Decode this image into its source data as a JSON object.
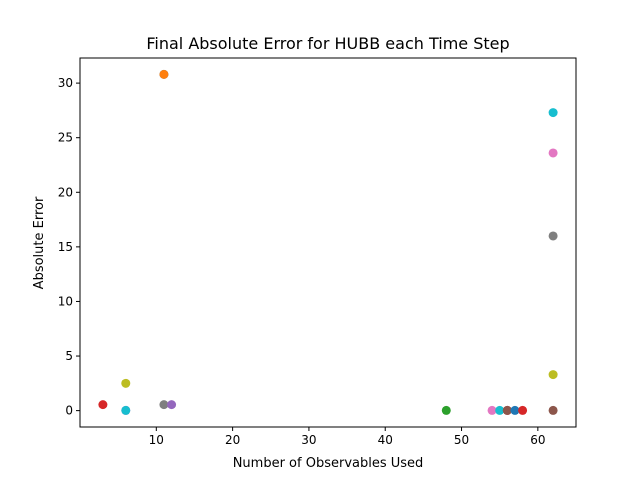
{
  "chart_data": {
    "type": "scatter",
    "title": "Final Absolute Error for HUBB each Time Step",
    "xlabel": "Number of Observables Used",
    "ylabel": "Absolute Error",
    "xlim": [
      0,
      65
    ],
    "ylim": [
      -1.5,
      32.3
    ],
    "xticks": [
      10,
      20,
      30,
      40,
      50,
      60
    ],
    "yticks": [
      0,
      5,
      10,
      15,
      20,
      25,
      30
    ],
    "grid": false,
    "legend": "none",
    "colors": [
      "#1f77b4",
      "#ff7f0e",
      "#2ca02c",
      "#d62728",
      "#9467bd",
      "#8c564b",
      "#e377c2",
      "#7f7f7f",
      "#bcbd22",
      "#17becf"
    ],
    "points": [
      {
        "x": 11,
        "y": 30.8,
        "color": "#1f77b4"
      },
      {
        "x": 11,
        "y": 30.8,
        "color": "#ff7f0e"
      },
      {
        "x": 3,
        "y": 0.55,
        "color": "#d62728"
      },
      {
        "x": 6,
        "y": 2.5,
        "color": "#bcbd22"
      },
      {
        "x": 6,
        "y": 0.02,
        "color": "#e377c2"
      },
      {
        "x": 6,
        "y": 0.02,
        "color": "#17becf"
      },
      {
        "x": 11,
        "y": 0.55,
        "color": "#7f7f7f"
      },
      {
        "x": 12,
        "y": 0.55,
        "color": "#9467bd"
      },
      {
        "x": 48,
        "y": 0.02,
        "color": "#2ca02c"
      },
      {
        "x": 54,
        "y": 0.02,
        "color": "#e377c2"
      },
      {
        "x": 55,
        "y": 0.02,
        "color": "#17becf"
      },
      {
        "x": 56,
        "y": 0.02,
        "color": "#d62728"
      },
      {
        "x": 56,
        "y": 0.02,
        "color": "#8c564b"
      },
      {
        "x": 57,
        "y": 0.02,
        "color": "#1f77b4"
      },
      {
        "x": 58,
        "y": 0.02,
        "color": "#d62728"
      },
      {
        "x": 62,
        "y": 0.02,
        "color": "#8c564b"
      },
      {
        "x": 62,
        "y": 3.3,
        "color": "#bcbd22"
      },
      {
        "x": 62,
        "y": 16.0,
        "color": "#7f7f7f"
      },
      {
        "x": 62,
        "y": 23.6,
        "color": "#e377c2"
      },
      {
        "x": 62,
        "y": 27.3,
        "color": "#17becf"
      }
    ]
  }
}
